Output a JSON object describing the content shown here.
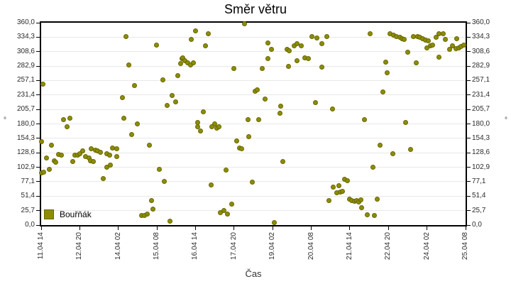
{
  "title": "Směr větru",
  "legend": {
    "label": "Bouřňák"
  },
  "colors": {
    "marker_fill": "#8d8d00",
    "marker_border": "#676700",
    "grid": "#e8e8e8",
    "axis": "#000000",
    "background": "#ffffff"
  },
  "chart_data": {
    "type": "scatter",
    "title": "Směr větru",
    "xlabel": "Čas",
    "ylabel": "°",
    "ylabel_right": "°",
    "grid": "horizontal",
    "legend_position": "bottom-left-inside",
    "x_unit": "hours since 11.04 14:00",
    "xlim": [
      0,
      330
    ],
    "ylim": [
      0,
      360
    ],
    "x_tick_hours": [
      0,
      30,
      60,
      90,
      120,
      150,
      180,
      210,
      240,
      270,
      300,
      330
    ],
    "x_tick_labels": [
      "11.04 14",
      "12.04 20",
      "14.04 02",
      "15.04 08",
      "16.04 14",
      "17.04 20",
      "19.04 02",
      "20.04 08",
      "21.04 14",
      "22.04 20",
      "24.04 02",
      "25.04 08"
    ],
    "y_tick_values": [
      0,
      25.7,
      51.4,
      77.1,
      102.9,
      128.6,
      154.3,
      180.0,
      205.7,
      231.4,
      257.1,
      282.9,
      308.6,
      334.3,
      360.0
    ],
    "y_tick_labels": [
      "0,0",
      "25,7",
      "51,4",
      "77,1",
      "102,9",
      "128,6",
      "154,3",
      "180,0",
      "205,7",
      "231,4",
      "257,1",
      "282,9",
      "308,6",
      "334,3",
      "360,0"
    ],
    "series": [
      {
        "name": "Bouřňák",
        "marker": "circle",
        "color": "#8d8d00",
        "border_color": "#676700",
        "points": [
          [
            1.5,
            251
          ],
          [
            17.5,
            188
          ],
          [
            22.5,
            189.5
          ],
          [
            63,
            227
          ],
          [
            64.5,
            190.5
          ],
          [
            66,
            336
          ],
          [
            68,
            285
          ],
          [
            72.5,
            248
          ],
          [
            74.5,
            180.5
          ],
          [
            89.5,
            320
          ],
          [
            94.5,
            258
          ],
          [
            98,
            213
          ],
          [
            102,
            231
          ],
          [
            104.5,
            219.5
          ],
          [
            106,
            266
          ],
          [
            108.5,
            287
          ],
          [
            109.5,
            296
          ],
          [
            110,
            297.5
          ],
          [
            112,
            292.5
          ],
          [
            114,
            288.5
          ],
          [
            116,
            284.5
          ],
          [
            116.5,
            330
          ],
          [
            118.5,
            288.5
          ],
          [
            120,
            345
          ],
          [
            121.5,
            182
          ],
          [
            126,
            202
          ],
          [
            128,
            318.5
          ],
          [
            130,
            341
          ],
          [
            135,
            179.5
          ],
          [
            150,
            278.5
          ],
          [
            158,
            357.5
          ],
          [
            161,
            188
          ],
          [
            166.5,
            238.5
          ],
          [
            168,
            241
          ],
          [
            169,
            188
          ],
          [
            172,
            278.5
          ],
          [
            174,
            224.5
          ],
          [
            176.5,
            323.5
          ],
          [
            176.5,
            296
          ],
          [
            179,
            312.5
          ],
          [
            185.5,
            199.5
          ],
          [
            186,
            212
          ],
          [
            191,
            312.5
          ],
          [
            192.5,
            282
          ],
          [
            193,
            310
          ],
          [
            196.5,
            318.5
          ],
          [
            199,
            322.5
          ],
          [
            199,
            292.5
          ],
          [
            202.5,
            318.5
          ],
          [
            205,
            297.5
          ],
          [
            208,
            296
          ],
          [
            210.5,
            335
          ],
          [
            213.5,
            218.5
          ],
          [
            214.5,
            332.5
          ],
          [
            218,
            322.5
          ],
          [
            218.5,
            281
          ],
          [
            222,
            335
          ],
          [
            226.5,
            207
          ],
          [
            251.5,
            187
          ],
          [
            256,
            340.5
          ],
          [
            265.5,
            237
          ],
          [
            268,
            290
          ],
          [
            269,
            271
          ],
          [
            271.5,
            340
          ],
          [
            274,
            338.5
          ],
          [
            276,
            336
          ],
          [
            279,
            333.5
          ],
          [
            280.5,
            331
          ],
          [
            282,
            330
          ],
          [
            283.5,
            182
          ],
          [
            285,
            307.5
          ],
          [
            289.5,
            336
          ],
          [
            291.5,
            288.5
          ],
          [
            292.5,
            336
          ],
          [
            294.5,
            333.5
          ],
          [
            296.5,
            331
          ],
          [
            299,
            328.5
          ],
          [
            300,
            315
          ],
          [
            301,
            327.5
          ],
          [
            302.5,
            318.5
          ],
          [
            304.5,
            320
          ],
          [
            307,
            333.5
          ],
          [
            309.5,
            341
          ],
          [
            309.5,
            298.5
          ],
          [
            312.5,
            340
          ],
          [
            314,
            330
          ],
          [
            317.5,
            312.5
          ],
          [
            320,
            318.5
          ],
          [
            322.5,
            313.5
          ],
          [
            323,
            331
          ],
          [
            325,
            315
          ],
          [
            326.5,
            317.5
          ],
          [
            328.5,
            320
          ],
          [
            0.5,
            148
          ],
          [
            0.5,
            93
          ],
          [
            2,
            94.5
          ],
          [
            4,
            119
          ],
          [
            6.5,
            99.5
          ],
          [
            8,
            141.5
          ],
          [
            10,
            114
          ],
          [
            11.5,
            111.5
          ],
          [
            13.5,
            125.5
          ],
          [
            16,
            124
          ],
          [
            20,
            174.5
          ],
          [
            24.5,
            113
          ],
          [
            26,
            124
          ],
          [
            28.5,
            124
          ],
          [
            30,
            126.5
          ],
          [
            32.5,
            131.5
          ],
          [
            34.5,
            121.5
          ],
          [
            37,
            119
          ],
          [
            38.5,
            114
          ],
          [
            39,
            135.5
          ],
          [
            40.5,
            113
          ],
          [
            42,
            133
          ],
          [
            44,
            131.5
          ],
          [
            46,
            129
          ],
          [
            48.5,
            83
          ],
          [
            51,
            126.5
          ],
          [
            51,
            103
          ],
          [
            53.5,
            124
          ],
          [
            54,
            106.5
          ],
          [
            55.5,
            136.5
          ],
          [
            58.5,
            135.5
          ],
          [
            59,
            121.5
          ],
          [
            70.5,
            160.5
          ],
          [
            78,
            16.5
          ],
          [
            80.5,
            17.5
          ],
          [
            82.5,
            19
          ],
          [
            84,
            141.5
          ],
          [
            86,
            44
          ],
          [
            87,
            29
          ],
          [
            92,
            99.5
          ],
          [
            96,
            78
          ],
          [
            100,
            6.5
          ],
          [
            121.5,
            174.5
          ],
          [
            124,
            167
          ],
          [
            132,
            71.5
          ],
          [
            132.5,
            174.5
          ],
          [
            136.5,
            173
          ],
          [
            138,
            175.5
          ],
          [
            139.5,
            22.5
          ],
          [
            142,
            25.5
          ],
          [
            144,
            98
          ],
          [
            145,
            19
          ],
          [
            148,
            37.5
          ],
          [
            152,
            149.5
          ],
          [
            154,
            137
          ],
          [
            156,
            135.5
          ],
          [
            161.5,
            157
          ],
          [
            164,
            77
          ],
          [
            181.5,
            5
          ],
          [
            188,
            113.5
          ],
          [
            223.5,
            44
          ],
          [
            227,
            67.5
          ],
          [
            230,
            58
          ],
          [
            231.5,
            69.5
          ],
          [
            232.5,
            59
          ],
          [
            234.5,
            60
          ],
          [
            236,
            82
          ],
          [
            238,
            79
          ],
          [
            239.5,
            46.5
          ],
          [
            241.5,
            44
          ],
          [
            243.5,
            42.5
          ],
          [
            245.5,
            44
          ],
          [
            247,
            41.5
          ],
          [
            248.5,
            44.5
          ],
          [
            249,
            31.5
          ],
          [
            253.5,
            18
          ],
          [
            258,
            103
          ],
          [
            259,
            16.5
          ],
          [
            261.5,
            46.5
          ],
          [
            263.5,
            141.5
          ],
          [
            273.5,
            126.5
          ],
          [
            287.5,
            134
          ]
        ]
      }
    ]
  }
}
